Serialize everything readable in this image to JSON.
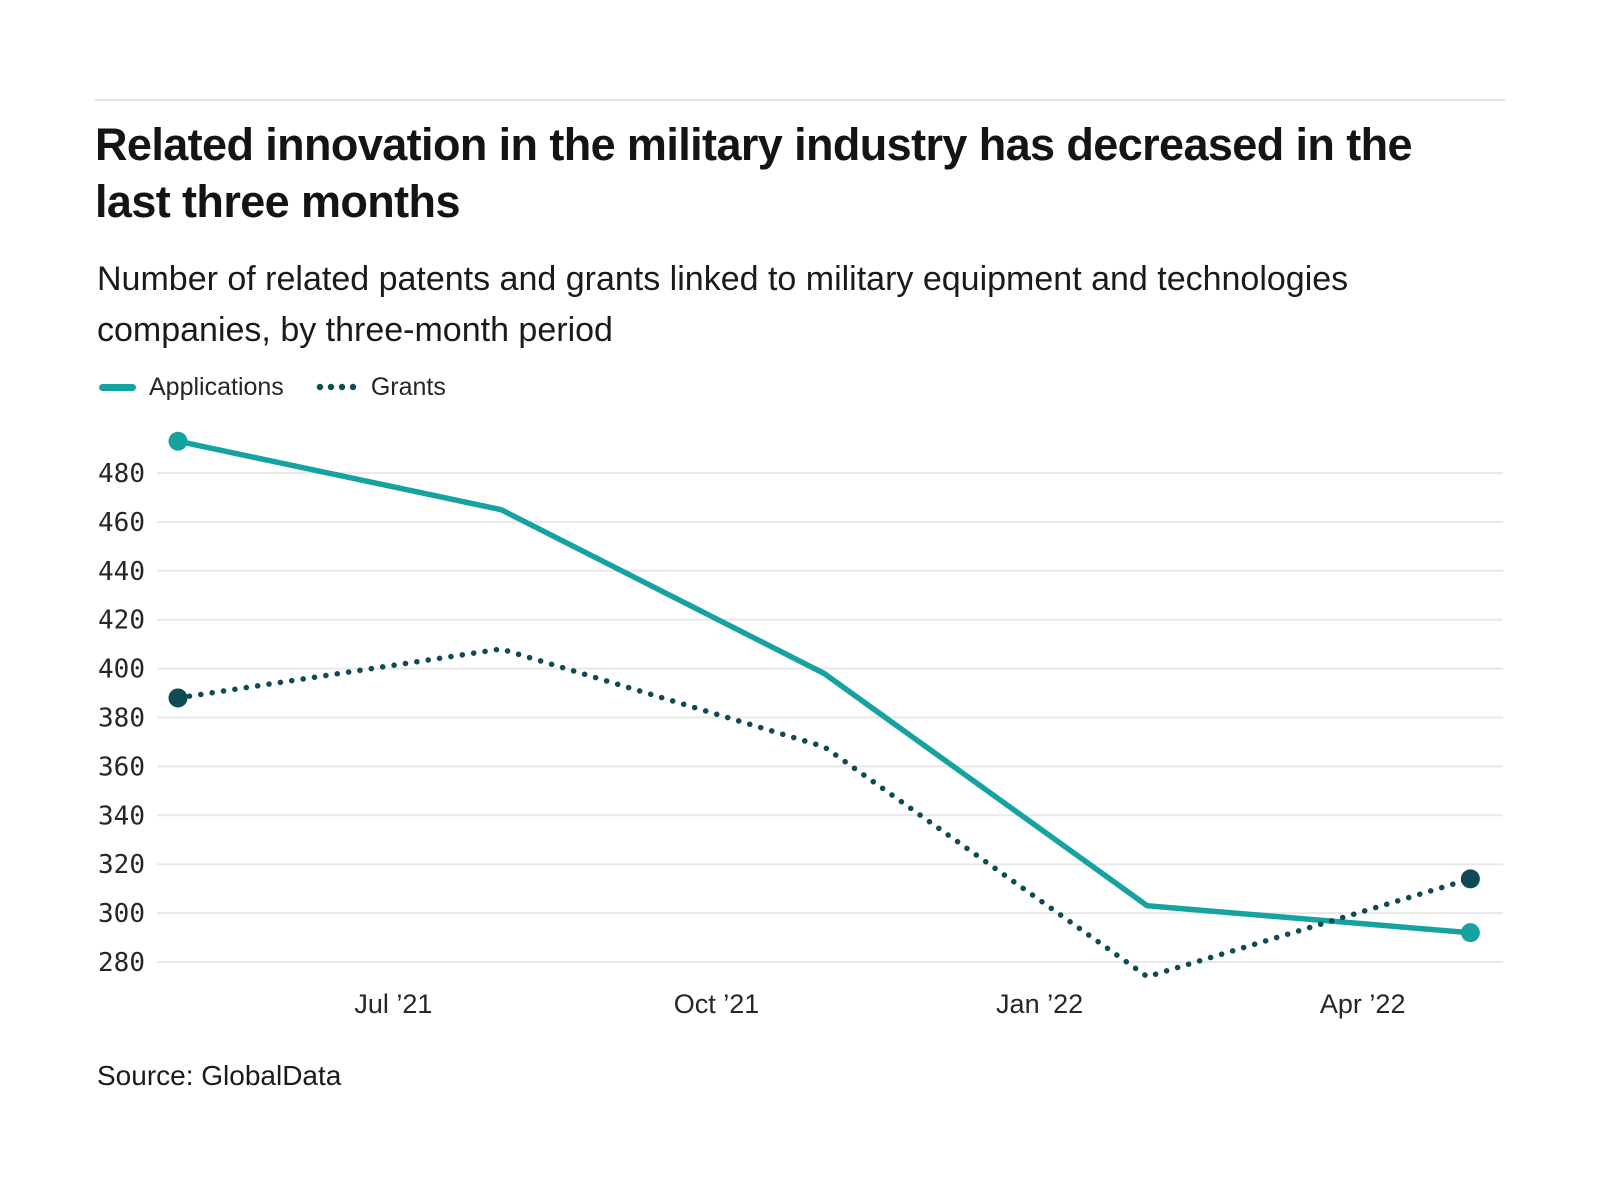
{
  "page": {
    "title": "Related innovation in the military industry has decreased in the last three months",
    "subtitle": "Number of related patents and grants linked to military equipment and technologies companies, by three-month period",
    "source": "Source: GlobalData"
  },
  "legend": {
    "items": [
      {
        "label": "Applications",
        "style": "solid",
        "color": "#17a2a2"
      },
      {
        "label": "Grants",
        "style": "dotted",
        "color": "#0f4b55"
      }
    ]
  },
  "chart_data": {
    "type": "line",
    "title": "Related innovation in the military industry has decreased in the last three months",
    "subtitle": "Number of related patents and grants linked to military equipment and technologies companies, by three-month period",
    "x_tick_labels": [
      "Jul ’21",
      "Oct ’21",
      "Jan ’22",
      "Apr ’22"
    ],
    "x_tick_month_index": [
      2,
      5,
      8,
      11
    ],
    "x_point_month_index": [
      0,
      3,
      6,
      9,
      12
    ],
    "series": [
      {
        "name": "Applications",
        "values": [
          493,
          465,
          398,
          303,
          292
        ],
        "color": "#17a2a2",
        "style": "solid"
      },
      {
        "name": "Grants",
        "values": [
          388,
          408,
          368,
          274,
          314
        ],
        "color": "#0f4b55",
        "style": "dotted"
      }
    ],
    "y_ticks": [
      280,
      300,
      320,
      340,
      360,
      380,
      400,
      420,
      440,
      460,
      480
    ],
    "ylim": [
      272,
      497
    ],
    "grid": "horizontal-only",
    "grid_color": "#e8e8e8",
    "tick_text_color": "#262626",
    "legend_position": "top-left",
    "endpoint_dots": "first-and-last"
  }
}
